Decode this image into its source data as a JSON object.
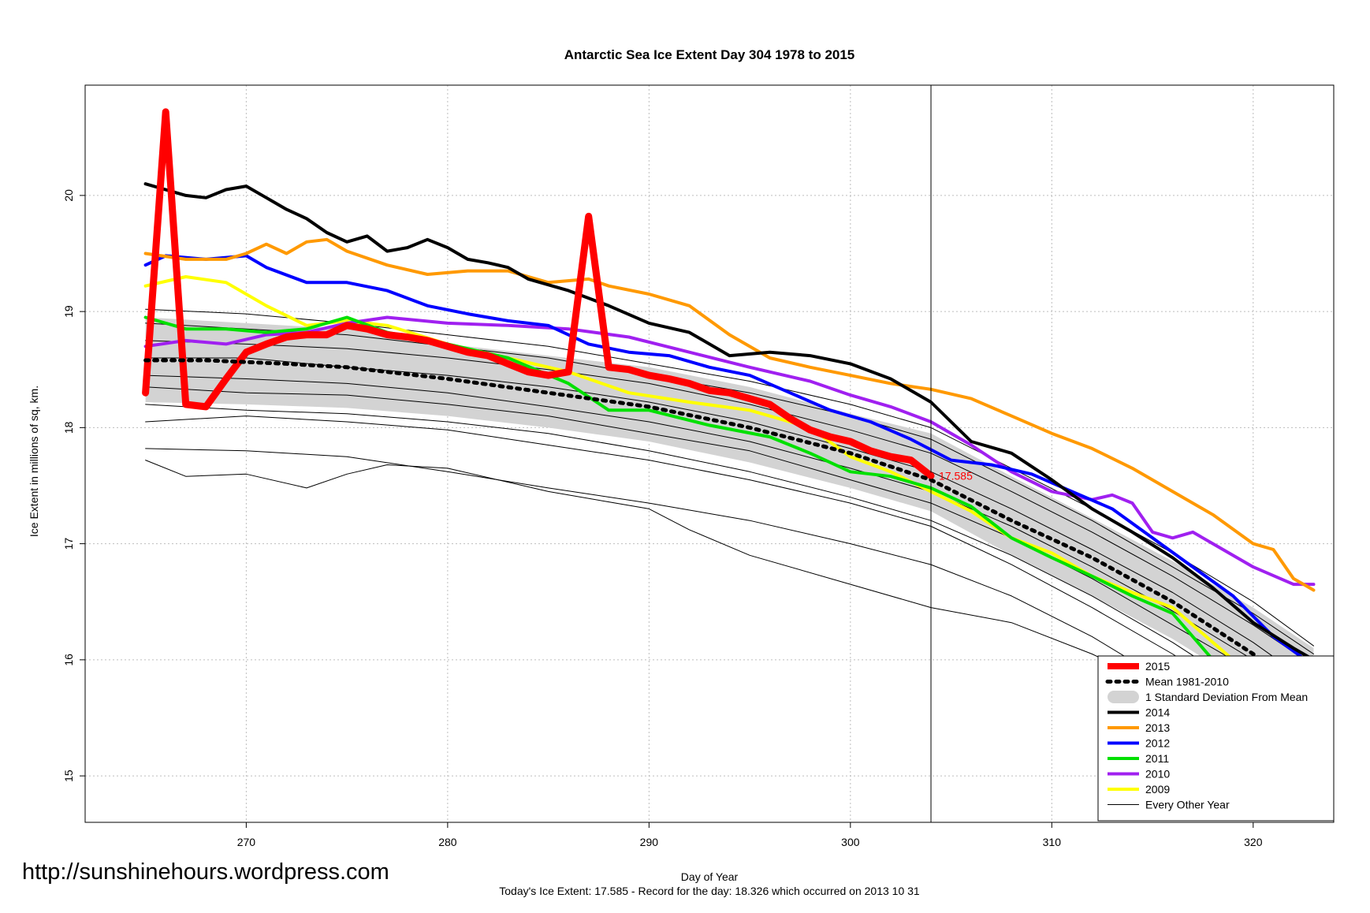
{
  "watermark": "http://sunshinehours.wordpress.com",
  "chart_data": {
    "type": "line",
    "title": "Antarctic Sea Ice Extent Day 304 1978 to 2015",
    "xlabel": "Day of Year",
    "ylabel": "Ice Extent in millions of sq, km.",
    "footer": "Today's Ice Extent: 17.585  - Record for the day: 18.326 which occurred on 2013 10 31",
    "xlim": [
      262,
      324
    ],
    "ylim": [
      14.6,
      20.95
    ],
    "x_ticks": [
      270,
      280,
      290,
      300,
      310,
      320
    ],
    "y_ticks": [
      15,
      16,
      17,
      18,
      19,
      20
    ],
    "grid": true,
    "vline_x": 304,
    "current_label": "17.585",
    "current_point": [
      304,
      17.585
    ],
    "legend_position": "bottom-right",
    "legend": [
      {
        "label": "2015",
        "color": "#ff0000",
        "style": "thick"
      },
      {
        "label": "Mean 1981-2010",
        "color": "#000000",
        "style": "dotted"
      },
      {
        "label": "1 Standard Deviation From Mean",
        "color": "#d3d3d3",
        "style": "band"
      },
      {
        "label": "2014",
        "color": "#000000",
        "style": "line"
      },
      {
        "label": "2013",
        "color": "#ff9900",
        "style": "line"
      },
      {
        "label": "2012",
        "color": "#0000ff",
        "style": "line"
      },
      {
        "label": "2011",
        "color": "#00e000",
        "style": "line"
      },
      {
        "label": "2010",
        "color": "#a020f0",
        "style": "line"
      },
      {
        "label": "2009",
        "color": "#ffff00",
        "style": "line"
      },
      {
        "label": "Every Other Year",
        "color": "#000000",
        "style": "thin"
      }
    ],
    "band": {
      "x": [
        265,
        270,
        275,
        280,
        285,
        290,
        295,
        300,
        304,
        308,
        312,
        316,
        320,
        323
      ],
      "upper": [
        18.95,
        18.9,
        18.85,
        18.72,
        18.62,
        18.52,
        18.35,
        18.12,
        17.95,
        17.58,
        17.22,
        16.85,
        16.45,
        16.1
      ],
      "lower": [
        18.22,
        18.2,
        18.17,
        18.1,
        18.0,
        17.88,
        17.7,
        17.48,
        17.28,
        16.9,
        16.55,
        16.18,
        15.75,
        15.38
      ]
    },
    "mean": {
      "x": [
        265,
        268,
        272,
        275,
        280,
        285,
        290,
        295,
        300,
        304,
        308,
        312,
        316,
        320,
        323
      ],
      "y": [
        18.58,
        18.58,
        18.55,
        18.52,
        18.42,
        18.3,
        18.18,
        18.0,
        17.78,
        17.55,
        17.2,
        16.88,
        16.5,
        16.05,
        15.68
      ]
    },
    "series": [
      {
        "name": "Every Other Year",
        "color": "#000000",
        "width": 1,
        "x": [
          265,
          270,
          275,
          280,
          285,
          290,
          295,
          300,
          304,
          308,
          312,
          316,
          320,
          323
        ],
        "y": [
          18.45,
          18.42,
          18.38,
          18.3,
          18.18,
          18.05,
          17.88,
          17.65,
          17.45,
          17.15,
          16.8,
          16.42,
          16.0,
          15.6
        ]
      },
      {
        "name": "Every Other Year",
        "color": "#000000",
        "width": 1,
        "x": [
          265,
          270,
          275,
          280,
          285,
          290,
          295,
          300,
          304,
          308,
          312,
          316,
          320,
          323
        ],
        "y": [
          18.75,
          18.72,
          18.68,
          18.6,
          18.5,
          18.38,
          18.2,
          17.98,
          17.78,
          17.45,
          17.1,
          16.72,
          16.3,
          15.95
        ]
      },
      {
        "name": "Every Other Year",
        "color": "#000000",
        "width": 1,
        "x": [
          265,
          270,
          275,
          280,
          285,
          290,
          295,
          300,
          304,
          308,
          312,
          316,
          320,
          323
        ],
        "y": [
          18.2,
          18.15,
          18.12,
          18.05,
          17.95,
          17.8,
          17.62,
          17.4,
          17.2,
          16.9,
          16.55,
          16.15,
          15.7,
          15.28
        ]
      },
      {
        "name": "Every Other Year",
        "color": "#000000",
        "width": 1,
        "x": [
          265,
          270,
          275,
          280,
          285,
          290,
          295,
          300,
          304,
          308,
          312,
          316,
          320,
          323
        ],
        "y": [
          18.9,
          18.85,
          18.8,
          18.7,
          18.6,
          18.45,
          18.3,
          18.1,
          17.9,
          17.55,
          17.2,
          16.8,
          16.4,
          16.05
        ]
      },
      {
        "name": "Every Other Year",
        "color": "#000000",
        "width": 1,
        "x": [
          265,
          270,
          275,
          280,
          285,
          290,
          295,
          300,
          304,
          308,
          312,
          316,
          320,
          323
        ],
        "y": [
          18.05,
          18.1,
          18.05,
          17.98,
          17.85,
          17.72,
          17.55,
          17.35,
          17.15,
          16.82,
          16.45,
          16.05,
          15.6,
          15.2
        ]
      },
      {
        "name": "Every Other Year",
        "color": "#000000",
        "width": 1,
        "x": [
          265,
          270,
          275,
          280,
          285,
          290,
          295,
          300,
          304,
          308,
          312,
          316,
          320,
          323
        ],
        "y": [
          18.6,
          18.6,
          18.52,
          18.45,
          18.35,
          18.22,
          18.05,
          17.82,
          17.62,
          17.3,
          16.95,
          16.58,
          16.15,
          15.78
        ]
      },
      {
        "name": "Every Other Year",
        "color": "#000000",
        "width": 1,
        "x": [
          265,
          270,
          275,
          280,
          285,
          290,
          295,
          300,
          304,
          308,
          312,
          316,
          320,
          323
        ],
        "y": [
          18.35,
          18.3,
          18.28,
          18.2,
          18.1,
          17.95,
          17.8,
          17.55,
          17.35,
          17.05,
          16.7,
          16.3,
          15.9,
          15.5
        ]
      },
      {
        "name": "Every Other Year",
        "color": "#000000",
        "width": 1,
        "x": [
          265,
          270,
          275,
          280,
          285,
          290,
          295,
          300,
          304,
          308,
          312,
          316,
          320,
          323
        ],
        "y": [
          17.82,
          17.8,
          17.75,
          17.62,
          17.48,
          17.35,
          17.2,
          17.0,
          16.82,
          16.55,
          16.2,
          15.78,
          15.25,
          14.82
        ]
      },
      {
        "name": "Every Other Year",
        "color": "#000000",
        "width": 1,
        "x": [
          265,
          267,
          270,
          273,
          275,
          277,
          280,
          285,
          290,
          292,
          295,
          300,
          304,
          308,
          312,
          316,
          320,
          323
        ],
        "y": [
          17.72,
          17.58,
          17.6,
          17.48,
          17.6,
          17.68,
          17.65,
          17.45,
          17.3,
          17.12,
          16.9,
          16.65,
          16.45,
          16.32,
          16.05,
          15.72,
          15.25,
          14.92
        ]
      },
      {
        "name": "Every Other Year",
        "color": "#000000",
        "width": 1,
        "x": [
          265,
          270,
          275,
          280,
          285,
          290,
          295,
          300,
          304,
          308,
          312,
          316,
          320,
          323
        ],
        "y": [
          19.02,
          18.98,
          18.9,
          18.8,
          18.7,
          18.55,
          18.4,
          18.2,
          18.0,
          17.65,
          17.3,
          16.92,
          16.5,
          16.12
        ]
      },
      {
        "name": "2009",
        "color": "#ffff00",
        "width": 4,
        "x": [
          265,
          267,
          269,
          271,
          273,
          275,
          277,
          280,
          283,
          286,
          289,
          292,
          295,
          298,
          300,
          302,
          304,
          306,
          308,
          310,
          312,
          314,
          316,
          318,
          320,
          322,
          323
        ],
        "y": [
          19.22,
          19.3,
          19.25,
          19.05,
          18.88,
          18.92,
          18.88,
          18.72,
          18.6,
          18.48,
          18.3,
          18.22,
          18.15,
          18.0,
          17.75,
          17.62,
          17.45,
          17.28,
          17.05,
          16.92,
          16.72,
          16.58,
          16.45,
          16.15,
          15.85,
          15.6,
          15.5
        ]
      },
      {
        "name": "2010",
        "color": "#a020f0",
        "width": 4,
        "x": [
          265,
          267,
          269,
          271,
          273,
          275,
          277,
          280,
          283,
          286,
          289,
          292,
          295,
          298,
          300,
          302,
          304,
          306,
          308,
          310,
          312,
          313,
          314,
          315,
          316,
          317,
          318,
          320,
          322,
          323
        ],
        "y": [
          18.7,
          18.75,
          18.72,
          18.8,
          18.82,
          18.9,
          18.95,
          18.9,
          18.88,
          18.85,
          18.78,
          18.65,
          18.52,
          18.4,
          18.28,
          18.18,
          18.05,
          17.85,
          17.62,
          17.45,
          17.38,
          17.42,
          17.35,
          17.1,
          17.05,
          17.1,
          17.0,
          16.8,
          16.65,
          16.65
        ]
      },
      {
        "name": "2011",
        "color": "#00e000",
        "width": 4,
        "x": [
          265,
          267,
          269,
          271,
          273,
          275,
          277,
          280,
          283,
          286,
          288,
          290,
          293,
          296,
          298,
          300,
          302,
          304,
          306,
          308,
          310,
          312,
          314,
          316,
          318,
          320,
          322,
          323
        ],
        "y": [
          18.95,
          18.85,
          18.85,
          18.82,
          18.85,
          18.95,
          18.82,
          18.72,
          18.6,
          18.38,
          18.15,
          18.15,
          18.02,
          17.92,
          17.78,
          17.62,
          17.58,
          17.48,
          17.32,
          17.05,
          16.88,
          16.72,
          16.55,
          16.4,
          16.0,
          15.72,
          15.42,
          15.3
        ]
      },
      {
        "name": "2012",
        "color": "#0000ff",
        "width": 4,
        "x": [
          265,
          266,
          268,
          270,
          271,
          273,
          275,
          277,
          279,
          281,
          283,
          285,
          287,
          289,
          291,
          293,
          295,
          297,
          299,
          301,
          303,
          305,
          307,
          309,
          311,
          313,
          315,
          317,
          319,
          321,
          323
        ],
        "y": [
          19.4,
          19.48,
          19.45,
          19.48,
          19.38,
          19.25,
          19.25,
          19.18,
          19.05,
          18.98,
          18.92,
          18.88,
          18.72,
          18.65,
          18.62,
          18.52,
          18.45,
          18.3,
          18.15,
          18.05,
          17.9,
          17.72,
          17.68,
          17.6,
          17.45,
          17.3,
          17.05,
          16.8,
          16.55,
          16.2,
          15.95
        ]
      },
      {
        "name": "2013",
        "color": "#ff9900",
        "width": 4,
        "x": [
          265,
          267,
          269,
          270,
          271,
          272,
          273,
          274,
          275,
          277,
          279,
          281,
          283,
          285,
          287,
          288,
          290,
          292,
          294,
          296,
          298,
          300,
          302,
          304,
          306,
          308,
          310,
          312,
          314,
          316,
          318,
          320,
          321,
          322,
          323
        ],
        "y": [
          19.5,
          19.45,
          19.45,
          19.5,
          19.58,
          19.5,
          19.6,
          19.62,
          19.52,
          19.4,
          19.32,
          19.35,
          19.35,
          19.25,
          19.28,
          19.22,
          19.15,
          19.05,
          18.8,
          18.6,
          18.52,
          18.45,
          18.38,
          18.33,
          18.25,
          18.1,
          17.95,
          17.82,
          17.65,
          17.45,
          17.25,
          17.0,
          16.95,
          16.7,
          16.6
        ]
      },
      {
        "name": "2014",
        "color": "#000000",
        "width": 4,
        "x": [
          265,
          267,
          268,
          269,
          270,
          271,
          272,
          273,
          274,
          275,
          276,
          277,
          278,
          279,
          280,
          281,
          282,
          283,
          284,
          286,
          288,
          290,
          292,
          294,
          296,
          298,
          300,
          302,
          304,
          306,
          308,
          310,
          312,
          314,
          316,
          318,
          320,
          322,
          323
        ],
        "y": [
          20.1,
          20.0,
          19.98,
          20.05,
          20.08,
          19.98,
          19.88,
          19.8,
          19.68,
          19.6,
          19.65,
          19.52,
          19.55,
          19.62,
          19.55,
          19.45,
          19.42,
          19.38,
          19.28,
          19.18,
          19.05,
          18.9,
          18.82,
          18.62,
          18.65,
          18.62,
          18.55,
          18.42,
          18.22,
          17.88,
          17.78,
          17.55,
          17.3,
          17.1,
          16.88,
          16.62,
          16.32,
          16.1,
          16.0
        ]
      },
      {
        "name": "2015",
        "color": "#ff0000",
        "width": 9,
        "x": [
          265,
          266,
          267,
          268,
          269,
          270,
          271,
          272,
          273,
          274,
          275,
          276,
          277,
          278,
          279,
          280,
          281,
          282,
          283,
          284,
          285,
          286,
          287,
          288,
          289,
          290,
          291,
          292,
          293,
          294,
          295,
          296,
          297,
          298,
          299,
          300,
          301,
          302,
          303,
          304
        ],
        "y": [
          18.3,
          20.72,
          18.2,
          18.18,
          18.42,
          18.65,
          18.72,
          18.78,
          18.8,
          18.8,
          18.88,
          18.85,
          18.8,
          18.78,
          18.75,
          18.7,
          18.65,
          18.62,
          18.55,
          18.48,
          18.45,
          18.48,
          19.82,
          18.52,
          18.5,
          18.45,
          18.42,
          18.38,
          18.32,
          18.3,
          18.25,
          18.2,
          18.08,
          17.98,
          17.92,
          17.88,
          17.8,
          17.75,
          17.72,
          17.585
        ]
      }
    ]
  }
}
